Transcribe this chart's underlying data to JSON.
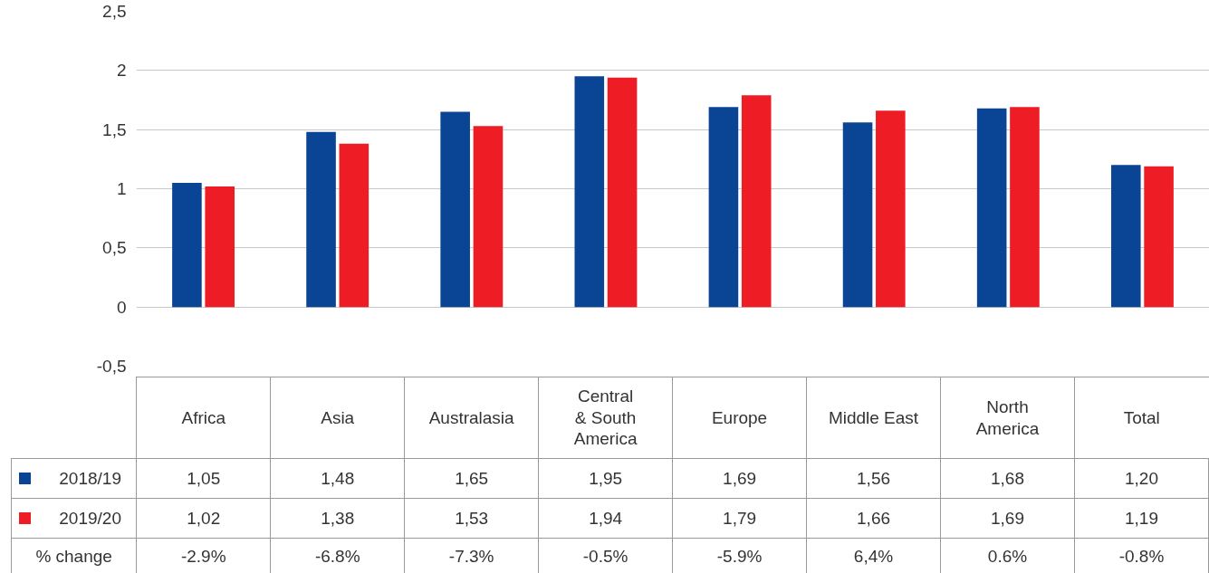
{
  "chart_data": {
    "type": "bar",
    "categories": [
      "Africa",
      "Asia",
      "Australasia",
      "Central\n& South\nAmerica",
      "Europe",
      "Middle East",
      "North\nAmerica",
      "Total"
    ],
    "series": [
      {
        "name": "2018/19",
        "color": "#0a4595",
        "values": [
          1.05,
          1.48,
          1.65,
          1.95,
          1.69,
          1.56,
          1.68,
          1.2
        ],
        "value_labels": [
          "1,05",
          "1,48",
          "1,65",
          "1,95",
          "1,69",
          "1,56",
          "1,68",
          "1,20"
        ]
      },
      {
        "name": "2019/20",
        "color": "#ee1c25",
        "values": [
          1.02,
          1.38,
          1.53,
          1.94,
          1.79,
          1.66,
          1.69,
          1.19
        ],
        "value_labels": [
          "1,02",
          "1,38",
          "1,53",
          "1,94",
          "1,79",
          "1,66",
          "1,69",
          "1,19"
        ]
      }
    ],
    "annotations": [
      "% change",
      "-2.9%",
      "-6.8%",
      "-7.3%",
      "-0.5%",
      "-5.9%",
      "6,4%",
      "0.6%",
      "-0.8%"
    ],
    "ylim": [
      -0.5,
      2.5
    ],
    "yticks": [
      {
        "value": -0.5,
        "label": "-0,5"
      },
      0,
      {
        "value": 0.5,
        "label": "0,5"
      },
      1,
      {
        "value": 1.5,
        "label": "1,5"
      },
      2,
      {
        "value": 2.5,
        "label": "2,5"
      }
    ],
    "grid": "y",
    "legend": "bottom"
  }
}
